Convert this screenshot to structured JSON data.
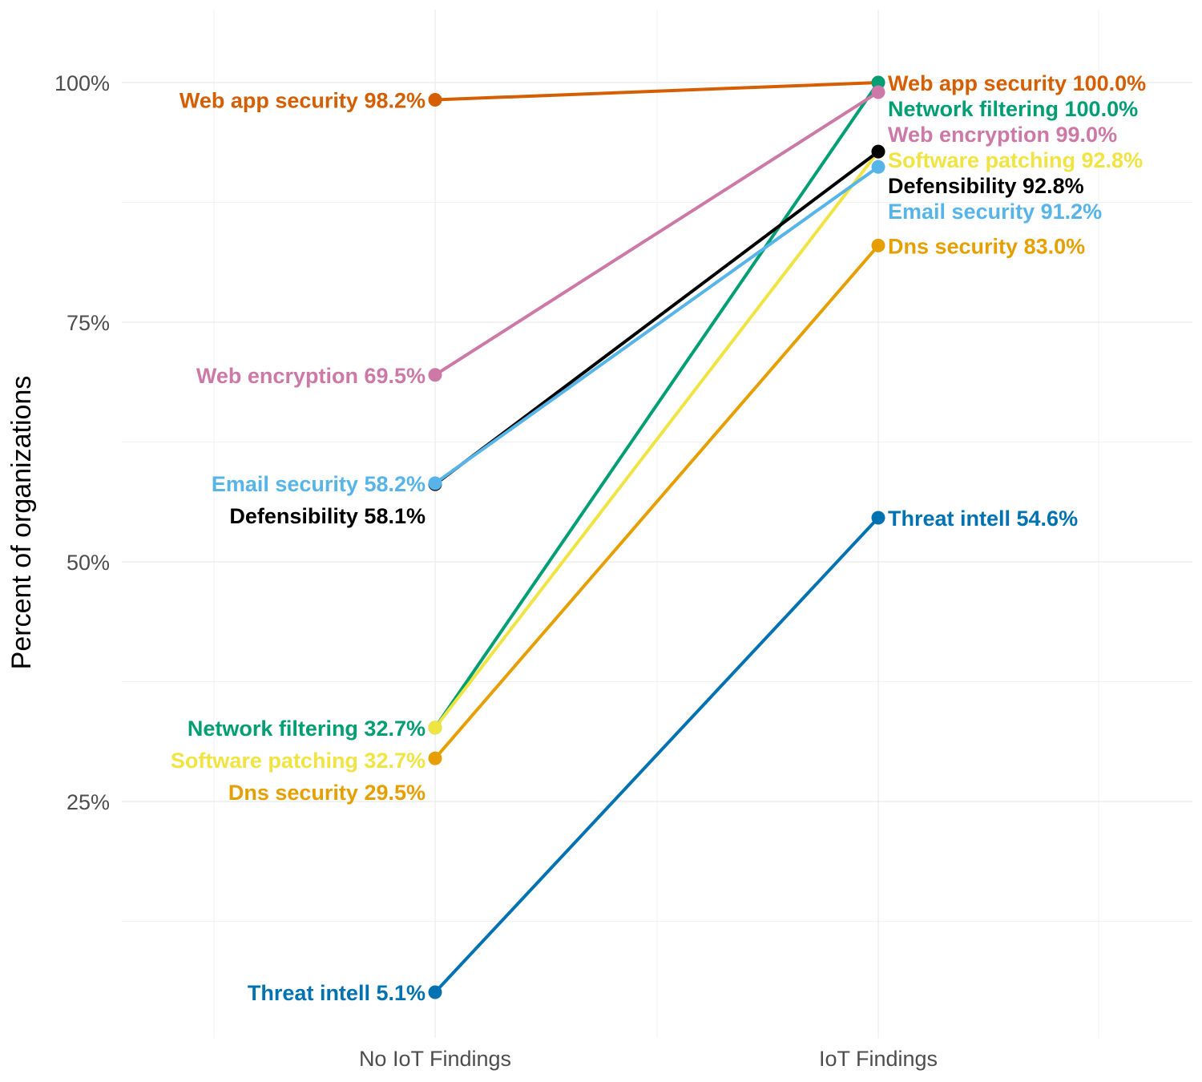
{
  "chart_data": {
    "type": "line",
    "title": "",
    "xlabel": "",
    "ylabel": "Percent of organizations",
    "categories": [
      "No IoT Findings",
      "IoT Findings"
    ],
    "ylim": [
      0,
      106
    ],
    "y_ticks": [
      25,
      50,
      75,
      100
    ],
    "y_tick_labels": [
      "25%",
      "50%",
      "75%",
      "100%"
    ],
    "grid": true,
    "legend": "none",
    "series": [
      {
        "name": "Web app security",
        "color": "#D55E00",
        "values": [
          98.2,
          100.0
        ],
        "labels": [
          "Web app security 98.2%",
          "Web app security 100.0%"
        ]
      },
      {
        "name": "Network filtering",
        "color": "#009E73",
        "values": [
          32.7,
          100.0
        ],
        "labels": [
          "Network filtering 32.7%",
          "Network filtering 100.0%"
        ]
      },
      {
        "name": "Web encryption",
        "color": "#CC79A7",
        "values": [
          69.5,
          99.0
        ],
        "labels": [
          "Web encryption 69.5%",
          "Web encryption 99.0%"
        ]
      },
      {
        "name": "Software patching",
        "color": "#F0E442",
        "values": [
          32.7,
          92.8
        ],
        "labels": [
          "Software patching 32.7%",
          "Software patching 92.8%"
        ]
      },
      {
        "name": "Defensibility",
        "color": "#000000",
        "values": [
          58.1,
          92.8
        ],
        "labels": [
          "Defensibility 58.1%",
          "Defensibility 92.8%"
        ]
      },
      {
        "name": "Email security",
        "color": "#56B4E9",
        "values": [
          58.2,
          91.2
        ],
        "labels": [
          "Email security 58.2%",
          "Email security 91.2%"
        ]
      },
      {
        "name": "Dns security",
        "color": "#E69F00",
        "values": [
          29.5,
          83.0
        ],
        "labels": [
          "Dns security 29.5%",
          "Dns security 83.0%"
        ]
      },
      {
        "name": "Threat intell",
        "color": "#0072B2",
        "values": [
          5.1,
          54.6
        ],
        "labels": [
          "Threat intell 5.1%",
          "Threat intell 54.6%"
        ]
      }
    ]
  }
}
